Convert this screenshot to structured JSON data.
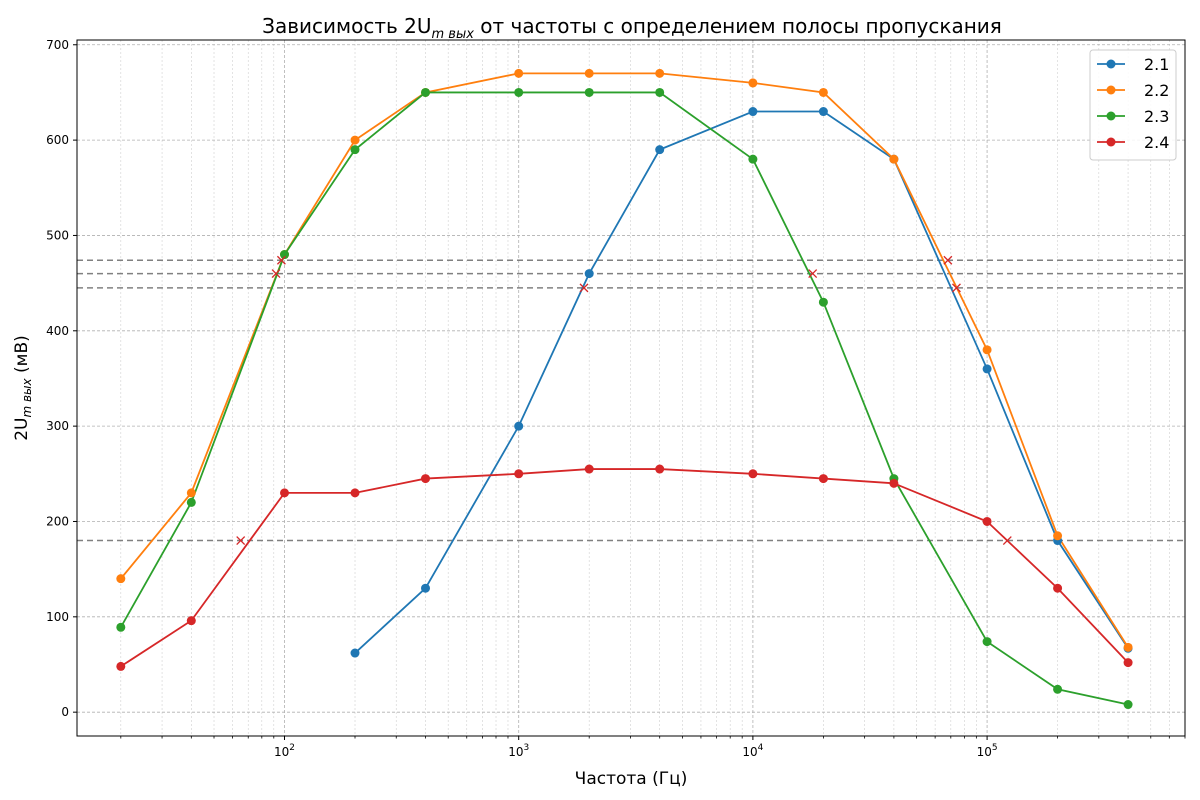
{
  "chart_data": {
    "type": "line",
    "title": "Зависимость 2U",
    "title_sub": "m вых",
    "title_rest": " от частоты с определением полосы пропускания",
    "xlabel": "Частота (Гц)",
    "ylabel_main": "2U",
    "ylabel_sub": "m вых",
    "ylabel_unit": " (мВ)",
    "x_scale": "log",
    "xlim": [
      13,
      700000
    ],
    "ylim": [
      -25,
      705
    ],
    "x_ticks": [
      {
        "value": 100,
        "base": "10",
        "exp": "2"
      },
      {
        "value": 1000,
        "base": "10",
        "exp": "3"
      },
      {
        "value": 10000,
        "base": "10",
        "exp": "4"
      },
      {
        "value": 100000,
        "base": "10",
        "exp": "5"
      }
    ],
    "y_ticks": [
      "0",
      "100",
      "200",
      "300",
      "400",
      "500",
      "600",
      "700"
    ],
    "grid": true,
    "legend_position": "top-right",
    "series": [
      {
        "name": "2.1",
        "color": "#1f77b4",
        "x": [
          200,
          400,
          1000,
          2000,
          4000,
          10000,
          20000,
          40000,
          100000,
          200000,
          400000
        ],
        "y": [
          62,
          130,
          300,
          460,
          590,
          630,
          630,
          580,
          360,
          180,
          67
        ]
      },
      {
        "name": "2.2",
        "color": "#ff7f0e",
        "x": [
          20,
          40,
          100,
          200,
          400,
          1000,
          2000,
          4000,
          10000,
          20000,
          40000,
          100000,
          200000,
          400000
        ],
        "y": [
          140,
          230,
          480,
          600,
          650,
          670,
          670,
          670,
          660,
          650,
          580,
          380,
          185,
          68
        ]
      },
      {
        "name": "2.3",
        "color": "#2ca02c",
        "x": [
          20,
          40,
          100,
          200,
          400,
          1000,
          2000,
          4000,
          10000,
          20000,
          40000,
          100000,
          200000,
          400000
        ],
        "y": [
          89,
          220,
          480,
          590,
          650,
          650,
          650,
          650,
          580,
          430,
          245,
          74,
          24,
          8
        ]
      },
      {
        "name": "2.4",
        "color": "#d62728",
        "x": [
          20,
          40,
          100,
          200,
          400,
          1000,
          2000,
          4000,
          10000,
          20000,
          40000,
          100000,
          200000,
          400000
        ],
        "y": [
          48,
          96,
          230,
          230,
          245,
          250,
          255,
          255,
          250,
          245,
          240,
          200,
          130,
          52
        ]
      }
    ],
    "reference_lines": [
      {
        "y": 474,
        "style": "dashed",
        "color": "#808080"
      },
      {
        "y": 460,
        "style": "dashed",
        "color": "#808080"
      },
      {
        "y": 445,
        "style": "dashed",
        "color": "#808080"
      },
      {
        "y": 180,
        "style": "dashed",
        "color": "#808080"
      }
    ],
    "band_markers": {
      "color": "#d62728",
      "symbol": "x",
      "points": [
        {
          "x": 65,
          "y": 180
        },
        {
          "x": 92,
          "y": 460
        },
        {
          "x": 97,
          "y": 474
        },
        {
          "x": 1900,
          "y": 445
        },
        {
          "x": 18000,
          "y": 460
        },
        {
          "x": 68000,
          "y": 474
        },
        {
          "x": 74000,
          "y": 445
        },
        {
          "x": 122000,
          "y": 180
        }
      ]
    }
  }
}
